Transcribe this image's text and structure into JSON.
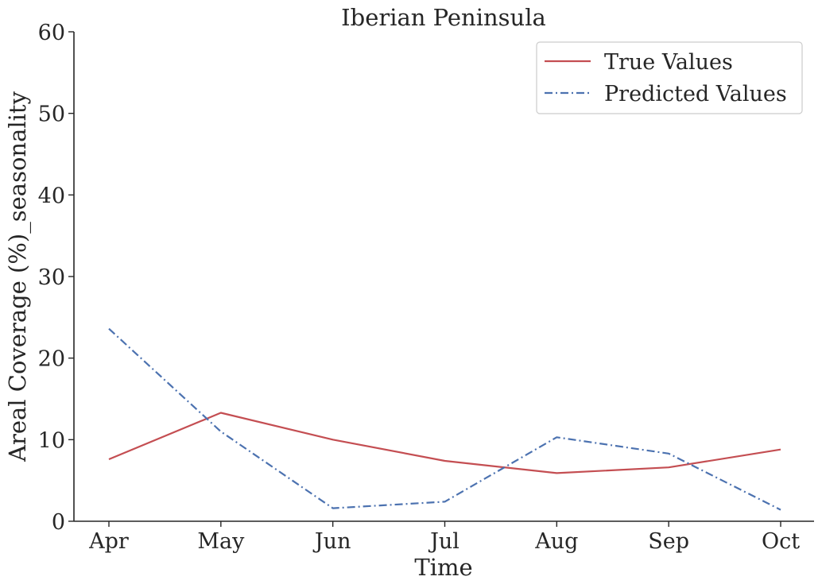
{
  "chart_data": {
    "type": "line",
    "title": "Iberian Peninsula",
    "xlabel": "Time",
    "ylabel": "Areal Coverage (%)_seasonality",
    "categories": [
      "Apr",
      "May",
      "Jun",
      "Jul",
      "Aug",
      "Sep",
      "Oct"
    ],
    "ylim": [
      0,
      60
    ],
    "yticks": [
      0,
      10,
      20,
      30,
      40,
      50,
      60
    ],
    "grid": false,
    "legend": "top-right",
    "series": [
      {
        "name": "True Values",
        "values": [
          7.6,
          13.3,
          10.0,
          7.4,
          5.9,
          6.6,
          8.8
        ],
        "color": "#c44e52",
        "style": "solid"
      },
      {
        "name": "Predicted Values",
        "values": [
          23.6,
          11.0,
          1.6,
          2.4,
          10.3,
          8.3,
          1.4
        ],
        "color": "#4c72b0",
        "style": "dashdot"
      }
    ]
  }
}
